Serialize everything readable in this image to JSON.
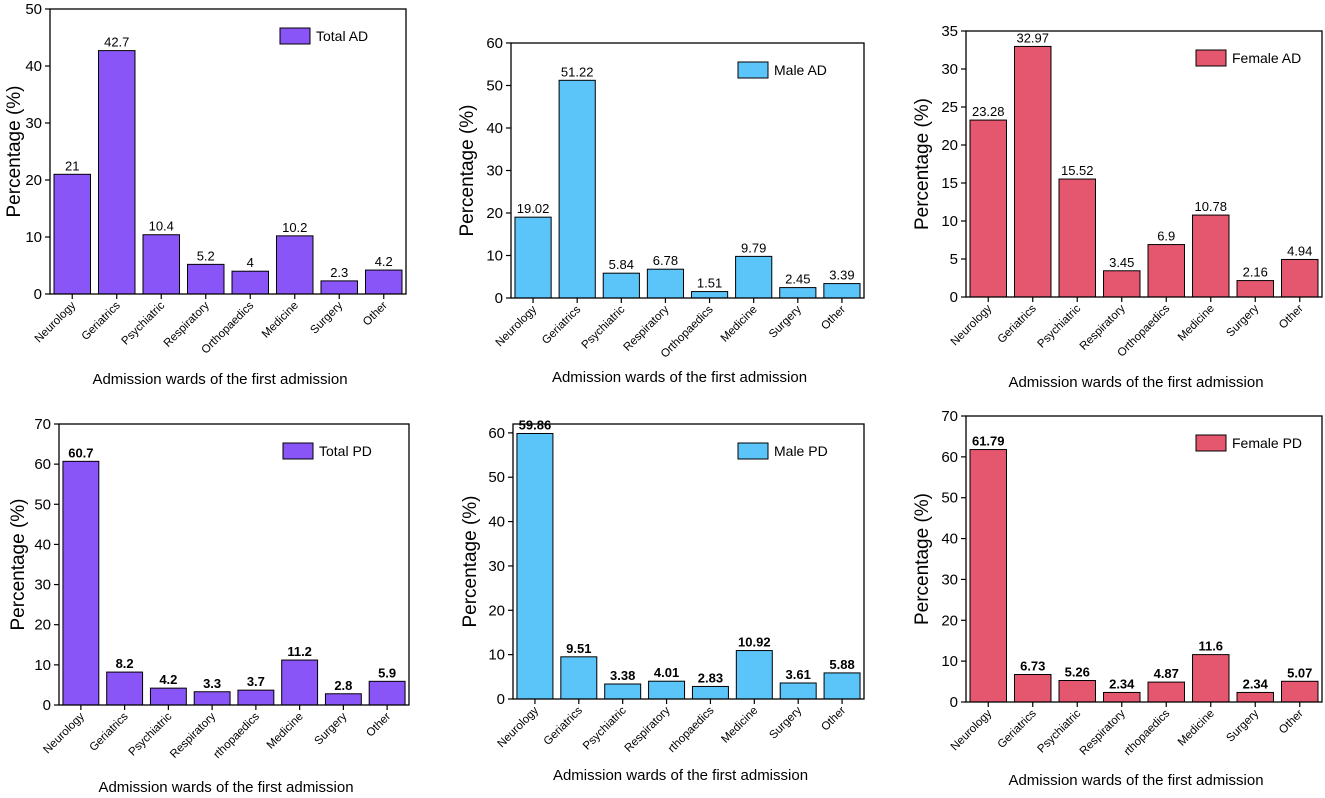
{
  "chart_data": [
    {
      "type": "bar",
      "legend": "Total AD",
      "color": "#8A55F7",
      "categories": [
        "Neurology",
        "Geriatrics",
        "Psychiatric",
        "Respiratory",
        "Orthopaedics",
        "Medicine",
        "Surgery",
        "Other"
      ],
      "values": [
        21,
        42.7,
        10.4,
        5.2,
        4,
        10.2,
        2.3,
        4.2
      ],
      "value_labels": [
        "21",
        "42.7",
        "10.4",
        "5.2",
        "4",
        "10.2",
        "2.3",
        "4.2"
      ],
      "ylabel": "Percentage (%)",
      "xlabel": "Admission wards of the first admission",
      "ylim": [
        0,
        50
      ],
      "yticks": [
        0,
        10,
        20,
        30,
        40,
        50
      ],
      "legend_position": "top-right",
      "bold_value_labels": false
    },
    {
      "type": "bar",
      "legend": "Male AD",
      "color": "#5BC5FA",
      "categories": [
        "Neurology",
        "Geriatrics",
        "Psychiatric",
        "Respiratory",
        "Orthopaedics",
        "Medicine",
        "Surgery",
        "Other"
      ],
      "values": [
        19.02,
        51.22,
        5.84,
        6.78,
        1.51,
        9.79,
        2.45,
        3.39
      ],
      "value_labels": [
        "19.02",
        "51.22",
        "5.84",
        "6.78",
        "1.51",
        "9.79",
        "2.45",
        "3.39"
      ],
      "ylabel": "Percentage (%)",
      "xlabel": "Admission wards of the first admission",
      "ylim": [
        0,
        60
      ],
      "yticks": [
        0,
        10,
        20,
        30,
        40,
        50,
        60
      ],
      "legend_position": "top-right",
      "bold_value_labels": false
    },
    {
      "type": "bar",
      "legend": "Female AD",
      "color": "#E5566F",
      "categories": [
        "Neurology",
        "Geriatrics",
        "Psychiatric",
        "Respiratory",
        "Orthopaedics",
        "Medicine",
        "Surgery",
        "Other"
      ],
      "values": [
        23.28,
        32.97,
        15.52,
        3.45,
        6.9,
        10.78,
        2.16,
        4.94
      ],
      "value_labels": [
        "23.28",
        "32.97",
        "15.52",
        "3.45",
        "6.9",
        "10.78",
        "2.16",
        "4.94"
      ],
      "ylabel": "Percentage (%)",
      "xlabel": "Admission wards of the first admission",
      "ylim": [
        0,
        35
      ],
      "yticks": [
        0,
        5,
        10,
        15,
        20,
        25,
        30,
        35
      ],
      "legend_position": "top-right",
      "bold_value_labels": false
    },
    {
      "type": "bar",
      "legend": "Total PD",
      "color": "#8A55F7",
      "categories": [
        "Neurology",
        "Geriatrics",
        "Psychiatric",
        "Respiratory",
        "rthopaedics",
        "Medicine",
        "Surgery",
        "Other"
      ],
      "values": [
        60.7,
        8.2,
        4.2,
        3.3,
        3.7,
        11.2,
        2.8,
        5.9
      ],
      "value_labels": [
        "60.7",
        "8.2",
        "4.2",
        "3.3",
        "3.7",
        "11.2",
        "2.8",
        "5.9"
      ],
      "ylabel": "Percentage (%)",
      "xlabel": "Admission wards of the first admission",
      "ylim": [
        0,
        70
      ],
      "yticks": [
        0,
        10,
        20,
        30,
        40,
        50,
        60,
        70
      ],
      "legend_position": "top-right",
      "bold_value_labels": true
    },
    {
      "type": "bar",
      "legend": "Male PD",
      "color": "#5BC5FA",
      "categories": [
        "Neurology",
        "Geriatrics",
        "Psychiatric",
        "Respiratory",
        "rthopaedics",
        "Medicine",
        "Surgery",
        "Other"
      ],
      "values": [
        59.86,
        9.51,
        3.38,
        4.01,
        2.83,
        10.92,
        3.61,
        5.88
      ],
      "value_labels": [
        "59.86",
        "9.51",
        "3.38",
        "4.01",
        "2.83",
        "10.92",
        "3.61",
        "5.88"
      ],
      "ylabel": "Percentage (%)",
      "xlabel": "Admission wards of the first admission",
      "ylim": [
        0,
        62
      ],
      "yticks": [
        0,
        10,
        20,
        30,
        40,
        50,
        60
      ],
      "legend_position": "top-right",
      "bold_value_labels": true
    },
    {
      "type": "bar",
      "legend": "Female PD",
      "color": "#E5566F",
      "categories": [
        "Neurology",
        "Geriatrics",
        "Psychiatric",
        "Respiratory",
        "rthopaedics",
        "Medicine",
        "Surgery",
        "Other"
      ],
      "values": [
        61.79,
        6.73,
        5.26,
        2.34,
        4.87,
        11.6,
        2.34,
        5.07
      ],
      "value_labels": [
        "61.79",
        "6.73",
        "5.26",
        "2.34",
        "4.87",
        "11.6",
        "2.34",
        "5.07"
      ],
      "ylabel": "Percentage (%)",
      "xlabel": "Admission wards of the first admission",
      "ylim": [
        0,
        70
      ],
      "yticks": [
        0,
        10,
        20,
        30,
        40,
        50,
        60,
        70
      ],
      "legend_position": "top-right",
      "bold_value_labels": true
    }
  ]
}
